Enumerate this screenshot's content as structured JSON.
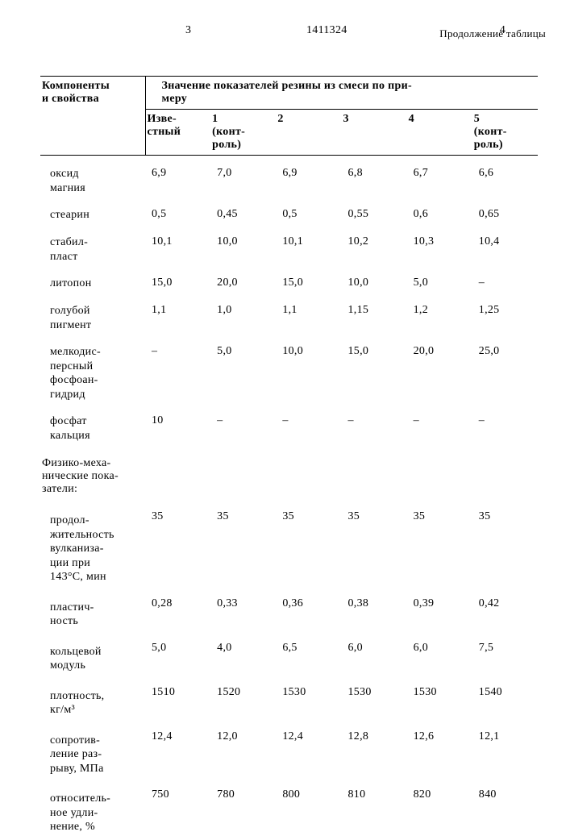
{
  "header": {
    "page_left": "3",
    "doc_no": "1411324",
    "page_right": "4",
    "continuation": "Продолжение таблицы"
  },
  "table": {
    "row_header": "Компоненты\nи свойства",
    "banner": "Значение показателей резины из смеси по при-\nмеру",
    "cols": [
      "Изве-\nстный",
      "1\n(конт-\nроль)",
      "2",
      "3",
      "4",
      "5\n(конт-\nроль)"
    ],
    "rows": [
      {
        "label": "оксид\nмагния",
        "v": [
          "6,9",
          "7,0",
          "6,9",
          "6,8",
          "6,7",
          "6,6"
        ]
      },
      {
        "label": "стеарин",
        "v": [
          "0,5",
          "0,45",
          "0,5",
          "0,55",
          "0,6",
          "0,65"
        ]
      },
      {
        "label": "стабил-\nпласт",
        "v": [
          "10,1",
          "10,0",
          "10,1",
          "10,2",
          "10,3",
          "10,4"
        ]
      },
      {
        "label": "литопон",
        "v": [
          "15,0",
          "20,0",
          "15,0",
          "10,0",
          "5,0",
          "–"
        ]
      },
      {
        "label": "голубой\nпигмент",
        "v": [
          "1,1",
          "1,0",
          "1,1",
          "1,15",
          "1,2",
          "1,25"
        ]
      },
      {
        "label": "мелкодис-\nперсный\nфосфоан-\nгидрид",
        "v": [
          "–",
          "5,0",
          "10,0",
          "15,0",
          "20,0",
          "25,0"
        ]
      },
      {
        "label": "фосфат\nкальция",
        "v": [
          "10",
          "–",
          "–",
          "–",
          "–",
          "–"
        ]
      }
    ],
    "section": "Физико-меха-\nнические пока-\nзатели:",
    "rows2": [
      {
        "label": "продол-\nжительность\nвулканиза-\nции при\n143°С, мин",
        "v": [
          "35",
          "35",
          "35",
          "35",
          "35",
          "35"
        ]
      },
      {
        "label": "пластич-\nность",
        "v": [
          "0,28",
          "0,33",
          "0,36",
          "0,38",
          "0,39",
          "0,42"
        ]
      },
      {
        "label": "кольцевой\nмодуль",
        "v": [
          "5,0",
          "4,0",
          "6,5",
          "6,0",
          "6,0",
          "7,5"
        ]
      },
      {
        "label": "плотность,\nкг/м³",
        "v": [
          "1510",
          "1520",
          "1530",
          "1530",
          "1530",
          "1540"
        ]
      },
      {
        "label": "сопротив-\nление раз-\nрыву, МПа",
        "v": [
          "12,4",
          "12,0",
          "12,4",
          "12,8",
          "12,6",
          "12,1"
        ]
      },
      {
        "label": "относитель-\nное удли-\nнение, %",
        "v": [
          "750",
          "780",
          "800",
          "810",
          "820",
          "840"
        ]
      }
    ]
  }
}
